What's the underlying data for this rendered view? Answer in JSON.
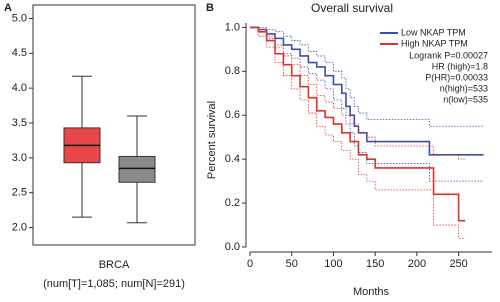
{
  "chart_data": [
    {
      "type": "box",
      "panel_label": "A",
      "xlabel": "BRCA",
      "note": "(num[T]=1,085; num[N]=291)",
      "ylim": [
        1.75,
        5.15
      ],
      "yticks": [
        {
          "value": 2,
          "label": "2.0"
        },
        {
          "value": 2.5,
          "label": "2.5"
        },
        {
          "value": 3,
          "label": "3.0"
        },
        {
          "value": 3.5,
          "label": "3.5"
        },
        {
          "value": 4,
          "label": "4.0"
        },
        {
          "value": 4.5,
          "label": "4.5"
        },
        {
          "value": 5,
          "label": "5.0"
        }
      ],
      "boxes": [
        {
          "color": "#e8474a",
          "whislo": 2.15,
          "q1": 2.93,
          "med": 3.18,
          "q3": 3.43,
          "whishi": 4.17
        },
        {
          "color": "#8a8a8a",
          "whislo": 2.07,
          "q1": 2.65,
          "med": 2.85,
          "q3": 3.02,
          "whishi": 3.6
        }
      ]
    },
    {
      "type": "survival",
      "panel_label": "B",
      "title": "Overall survival",
      "xlabel": "Months",
      "ylabel": "Percent survival",
      "xlim": [
        0,
        290
      ],
      "xticks": [
        0,
        50,
        100,
        150,
        200,
        250
      ],
      "ylim": [
        0,
        1.02
      ],
      "yticks": [
        {
          "value": 0,
          "label": "0.0"
        },
        {
          "value": 0.2,
          "label": "0.2"
        },
        {
          "value": 0.4,
          "label": "0.4"
        },
        {
          "value": 0.6,
          "label": "0.6"
        },
        {
          "value": 0.8,
          "label": "0.8"
        },
        {
          "value": 1,
          "label": "1.0"
        }
      ],
      "annotations": [
        "Logrank P=0.00027",
        "HR (high)=1.8",
        "P(HR)=0.00033",
        "n(high)=533",
        "n(low)=535"
      ],
      "series": [
        {
          "name": "Low NKAP TPM",
          "color": "#3a4fa8",
          "x": [
            0,
            10,
            20,
            30,
            40,
            50,
            60,
            70,
            80,
            90,
            100,
            110,
            115,
            120,
            125,
            130,
            140,
            160,
            210,
            215,
            280
          ],
          "values": [
            1,
            0.99,
            0.97,
            0.95,
            0.92,
            0.9,
            0.87,
            0.84,
            0.82,
            0.78,
            0.74,
            0.7,
            0.64,
            0.6,
            0.55,
            0.52,
            0.48,
            0.48,
            0.48,
            0.42,
            0.42
          ],
          "ci_upper": [
            1,
            1,
            0.99,
            0.98,
            0.96,
            0.94,
            0.92,
            0.89,
            0.87,
            0.84,
            0.8,
            0.77,
            0.72,
            0.68,
            0.64,
            0.61,
            0.58,
            0.58,
            0.58,
            0.55,
            0.55
          ],
          "ci_lower": [
            1,
            0.98,
            0.95,
            0.92,
            0.88,
            0.86,
            0.82,
            0.79,
            0.76,
            0.72,
            0.67,
            0.63,
            0.56,
            0.52,
            0.46,
            0.43,
            0.38,
            0.38,
            0.38,
            0.3,
            0.3
          ]
        },
        {
          "name": "High NKAP TPM",
          "color": "#e0312f",
          "x": [
            0,
            10,
            20,
            30,
            40,
            50,
            60,
            70,
            80,
            90,
            100,
            110,
            120,
            130,
            140,
            150,
            200,
            220,
            250,
            258
          ],
          "values": [
            1,
            0.98,
            0.94,
            0.88,
            0.83,
            0.78,
            0.73,
            0.68,
            0.62,
            0.59,
            0.56,
            0.52,
            0.48,
            0.42,
            0.4,
            0.36,
            0.36,
            0.24,
            0.12,
            0.12
          ],
          "ci_upper": [
            1,
            0.99,
            0.96,
            0.91,
            0.87,
            0.83,
            0.78,
            0.74,
            0.69,
            0.66,
            0.63,
            0.6,
            0.56,
            0.52,
            0.5,
            0.46,
            0.46,
            0.42,
            0.4,
            0.4
          ],
          "ci_lower": [
            1,
            0.96,
            0.91,
            0.84,
            0.78,
            0.72,
            0.67,
            0.61,
            0.55,
            0.51,
            0.48,
            0.44,
            0.4,
            0.33,
            0.3,
            0.26,
            0.26,
            0.1,
            0.04,
            0.04
          ]
        }
      ]
    }
  ]
}
